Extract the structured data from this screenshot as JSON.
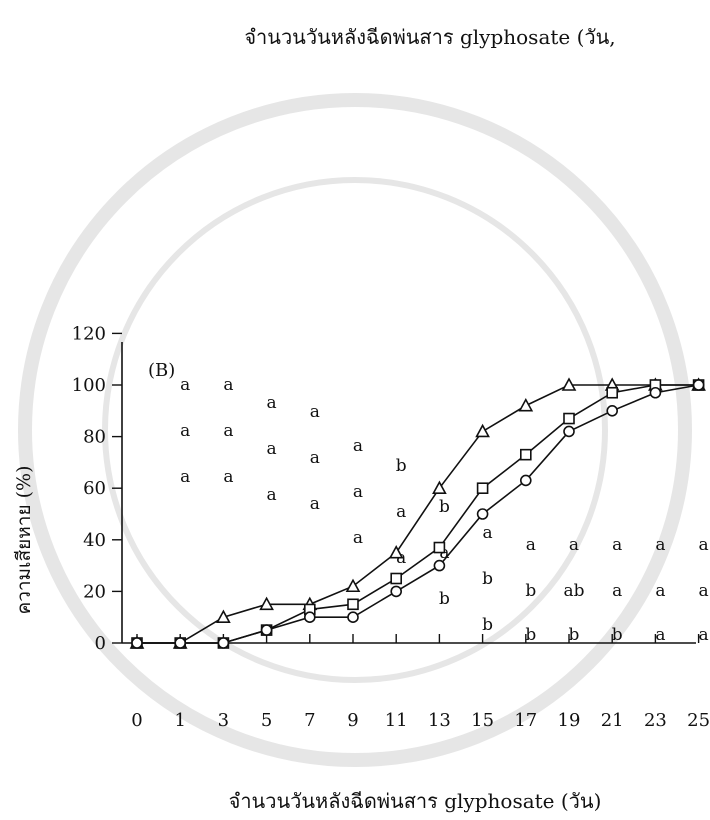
{
  "top_title": "จำนวนวันหลังฉีดพ่นสาร glyphosate (วัน,",
  "chart_data": {
    "type": "line",
    "panel_label": "(B)",
    "xlabel": "จำนวนวันหลังฉีดพ่นสาร glyphosate (วัน)",
    "ylabel": "ความเสียหาย (%)",
    "x": [
      0,
      1,
      3,
      5,
      7,
      9,
      11,
      13,
      15,
      17,
      19,
      21,
      23,
      25
    ],
    "x_ticks": [
      "0",
      "1",
      "3",
      "5",
      "7",
      "9",
      "11",
      "13",
      "15",
      "17",
      "19",
      "21",
      "23",
      "25"
    ],
    "y_ticks": [
      0,
      20,
      40,
      60,
      80,
      100,
      120
    ],
    "ylim": [
      0,
      120
    ],
    "grid": false,
    "series": [
      {
        "marker": "triangle",
        "values": [
          0,
          0,
          10,
          15,
          15,
          22,
          35,
          60,
          82,
          92,
          100,
          100,
          100,
          100
        ]
      },
      {
        "marker": "square",
        "values": [
          0,
          0,
          0,
          5,
          13,
          15,
          25,
          37,
          60,
          73,
          87,
          97,
          100,
          100
        ]
      },
      {
        "marker": "circle",
        "values": [
          0,
          0,
          0,
          5,
          10,
          10,
          20,
          30,
          50,
          63,
          82,
          90,
          97,
          100
        ]
      }
    ],
    "letter_rows": [
      {
        "level": 0,
        "labels": [
          "",
          "a",
          "a",
          "a",
          "a",
          "a",
          "a",
          "b",
          "b",
          "b",
          "b",
          "b",
          "a",
          "a"
        ]
      },
      {
        "level": 1,
        "labels": [
          "",
          "a",
          "a",
          "a",
          "a",
          "a",
          "a",
          "a",
          "b",
          "b",
          "ab",
          "a",
          "a",
          "a"
        ]
      },
      {
        "level": 2,
        "labels": [
          "",
          "a",
          "a",
          "a",
          "a",
          "a",
          "b",
          "b",
          "a",
          "a",
          "a",
          "a",
          "a",
          "a"
        ]
      }
    ]
  }
}
